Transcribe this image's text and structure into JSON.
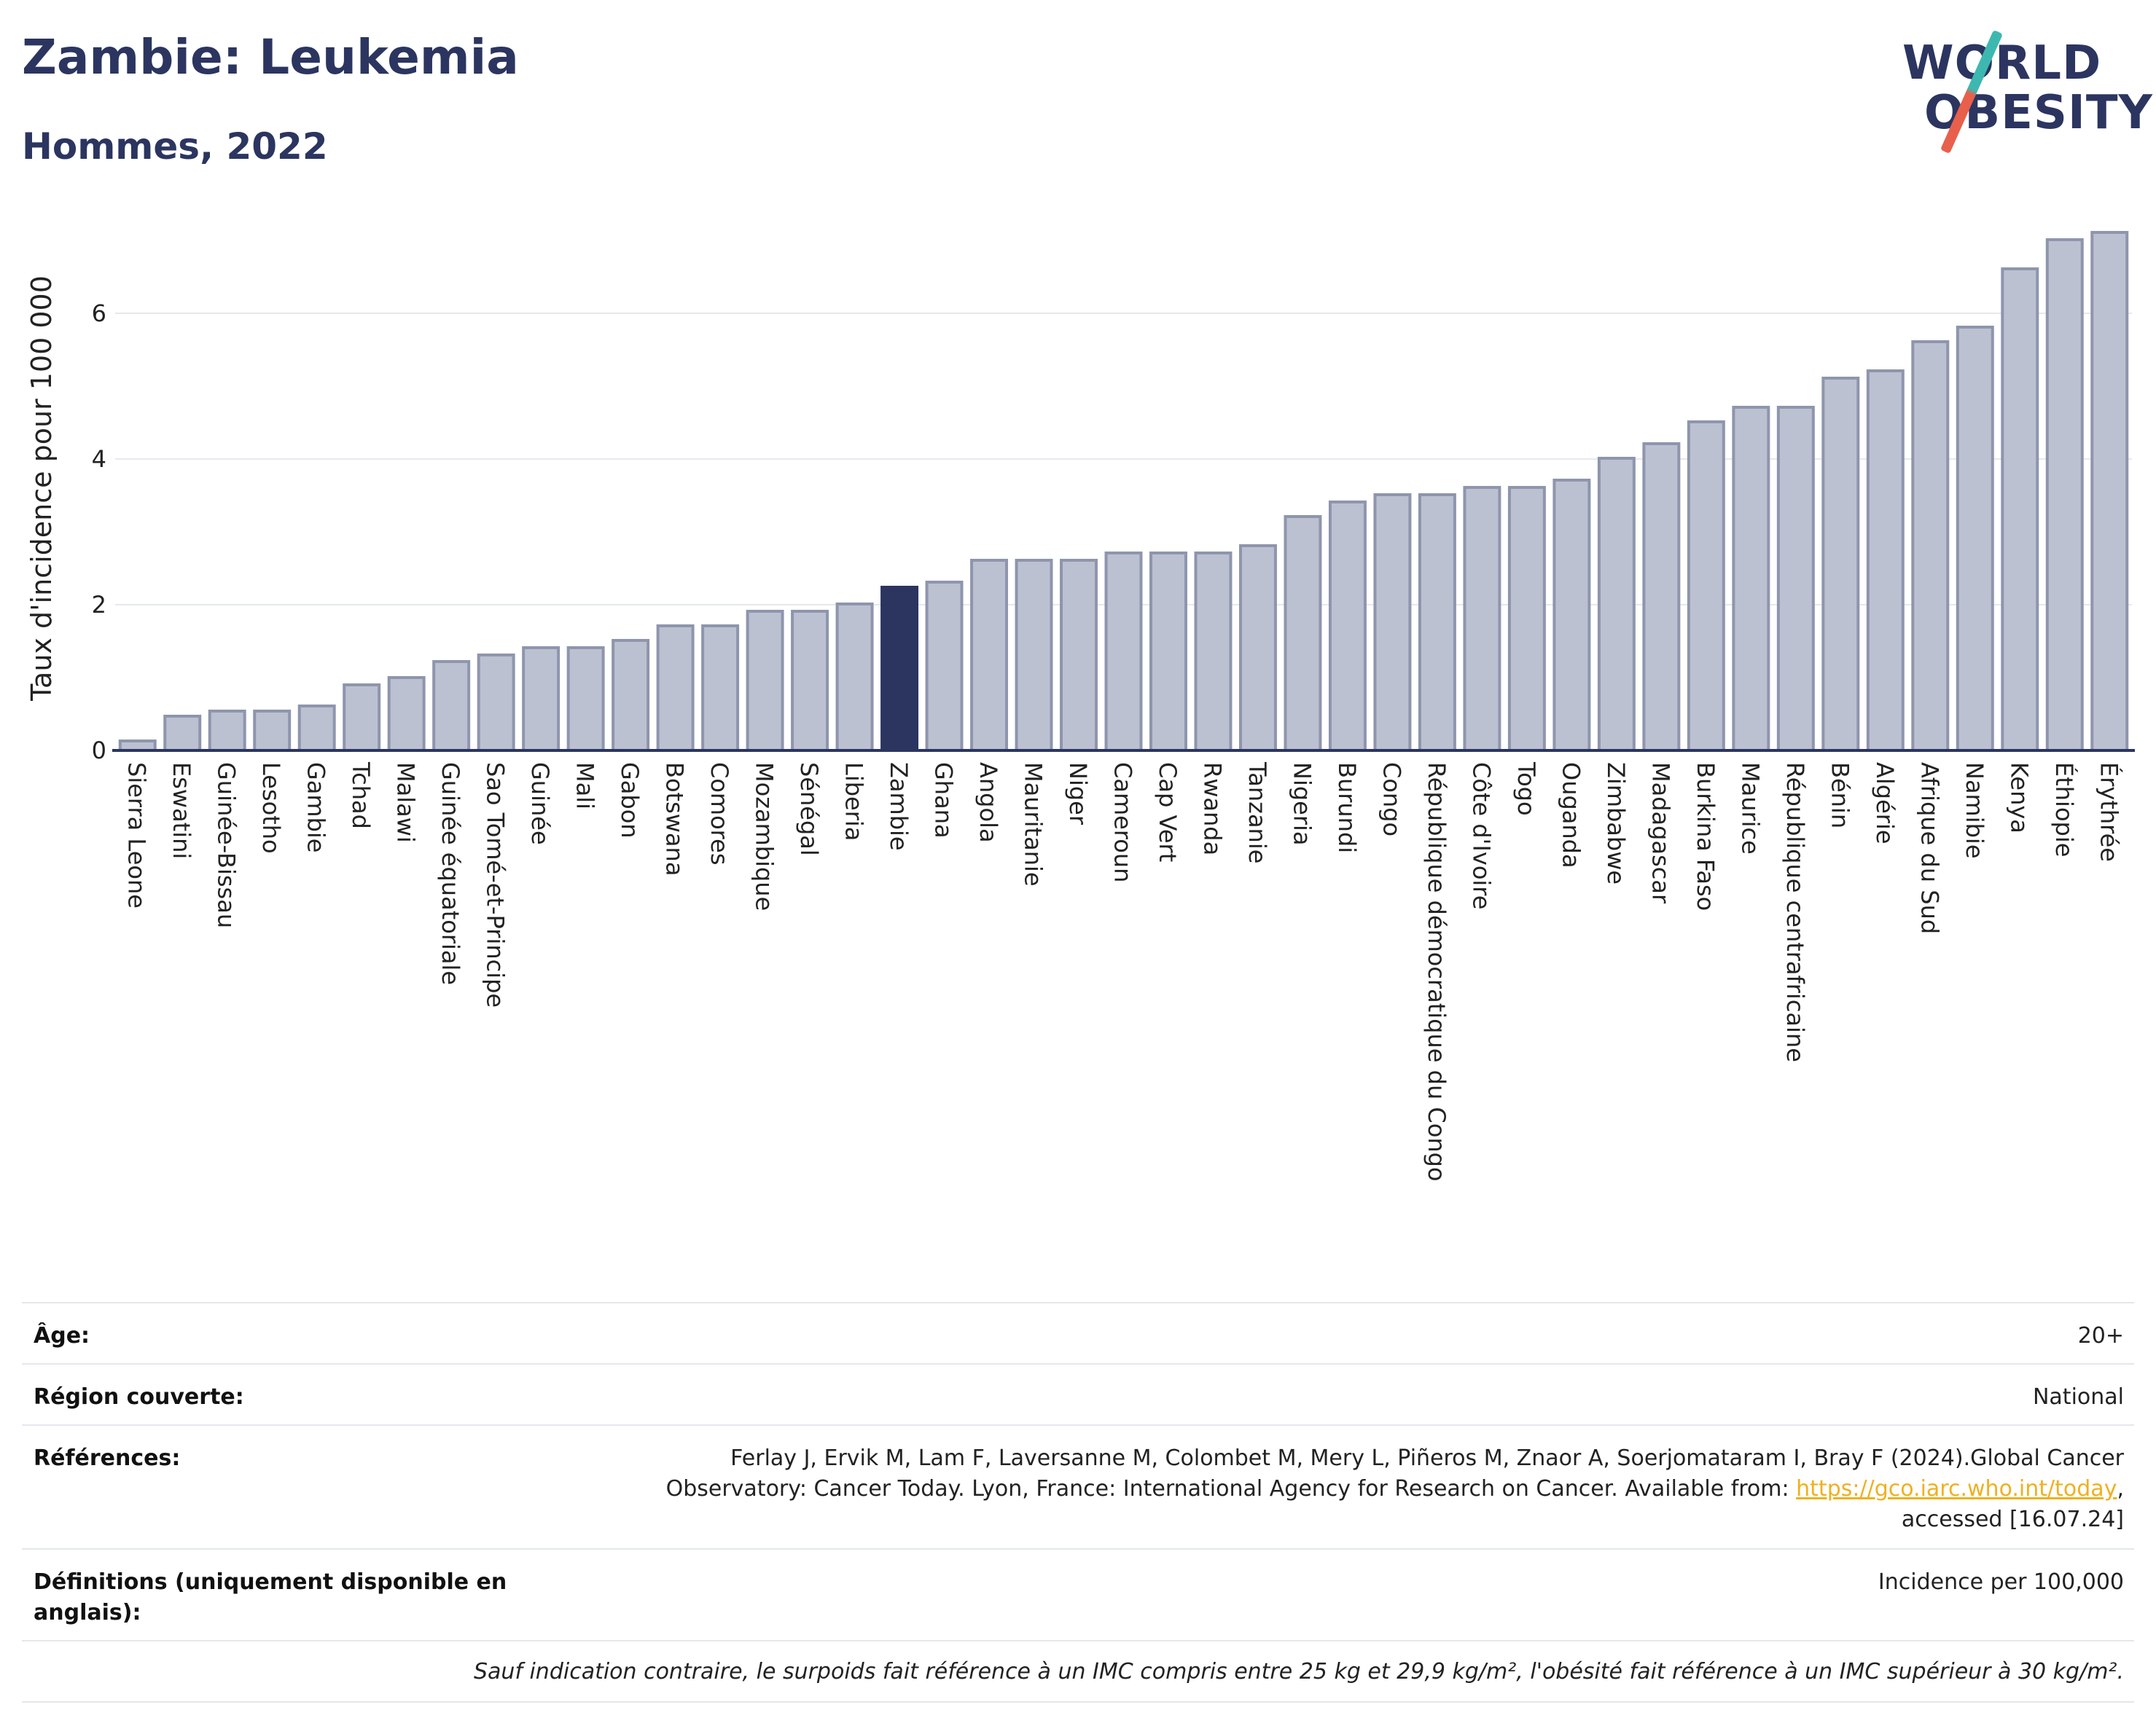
{
  "header": {
    "title": "Zambie: Leukemia",
    "subtitle": "Hommes, 2022",
    "logo_line1": "WORLD",
    "logo_line2": "OBESITY"
  },
  "colors": {
    "bar": "#bcc1d1",
    "bar_stroke": "#8e95ad",
    "highlight": "#2b3560",
    "grid": "#e6e8ef",
    "axis": "#2b3560"
  },
  "chart_data": {
    "type": "bar",
    "ylabel": "Taux d'incidence pour 100 000",
    "ylim": [
      0,
      7.2
    ],
    "yticks": [
      0,
      2,
      4,
      6
    ],
    "grid": true,
    "highlight": "Zambie",
    "categories": [
      "Sierra Leone",
      "Eswatini",
      "Guinée-Bissau",
      "Lesotho",
      "Gambie",
      "Tchad",
      "Malawi",
      "Guinée équatoriale",
      "Sao Tomé-et-Principe",
      "Guinée",
      "Mali",
      "Gabon",
      "Botswana",
      "Comores",
      "Mozambique",
      "Sénégal",
      "Liberia",
      "Zambie",
      "Ghana",
      "Angola",
      "Mauritanie",
      "Niger",
      "Cameroun",
      "Cap Vert",
      "Rwanda",
      "Tanzanie",
      "Nigeria",
      "Burundi",
      "Congo",
      "République démocratique du Congo",
      "Côte d'Ivoire",
      "Togo",
      "Ouganda",
      "Zimbabwe",
      "Madagascar",
      "Burkina Faso",
      "Maurice",
      "République centrafricaine",
      "Bénin",
      "Algérie",
      "Afrique du Sud",
      "Namibie",
      "Kenya",
      "Éthiopie",
      "Érythrée"
    ],
    "values": [
      0.13,
      0.47,
      0.54,
      0.54,
      0.61,
      0.9,
      1.0,
      1.22,
      1.31,
      1.41,
      1.41,
      1.51,
      1.71,
      1.71,
      1.91,
      1.91,
      2.01,
      2.24,
      2.31,
      2.61,
      2.61,
      2.61,
      2.71,
      2.71,
      2.71,
      2.81,
      3.21,
      3.41,
      3.51,
      3.51,
      3.61,
      3.61,
      3.71,
      4.01,
      4.21,
      4.51,
      4.71,
      4.71,
      5.11,
      5.21,
      5.61,
      5.81,
      6.61,
      7.01,
      7.11
    ]
  },
  "info": {
    "age_label": "Âge:",
    "age_value": "20+",
    "region_label": "Région couverte:",
    "region_value": "National",
    "refs_label": "Références:",
    "refs_text1": "Ferlay J, Ervik M, Lam F, Laversanne M, Colombet M, Mery L, Piñeros M, Znaor A, Soerjomataram I, Bray F (2024).Global Cancer",
    "refs_text2": "Observatory: Cancer Today. Lyon, France: International Agency for Research on Cancer. Available from:",
    "refs_link": "https://gco.iarc.who.int/today",
    "refs_text3": "accessed [16.07.24]",
    "defs_label": "Définitions (uniquement disponible en anglais):",
    "defs_value": "Incidence per 100,000",
    "note": "Sauf indication contraire, le surpoids fait référence à un IMC compris entre 25 kg et 29,9 kg/m², l'obésité fait référence à un IMC supérieur à 30 kg/m²."
  }
}
